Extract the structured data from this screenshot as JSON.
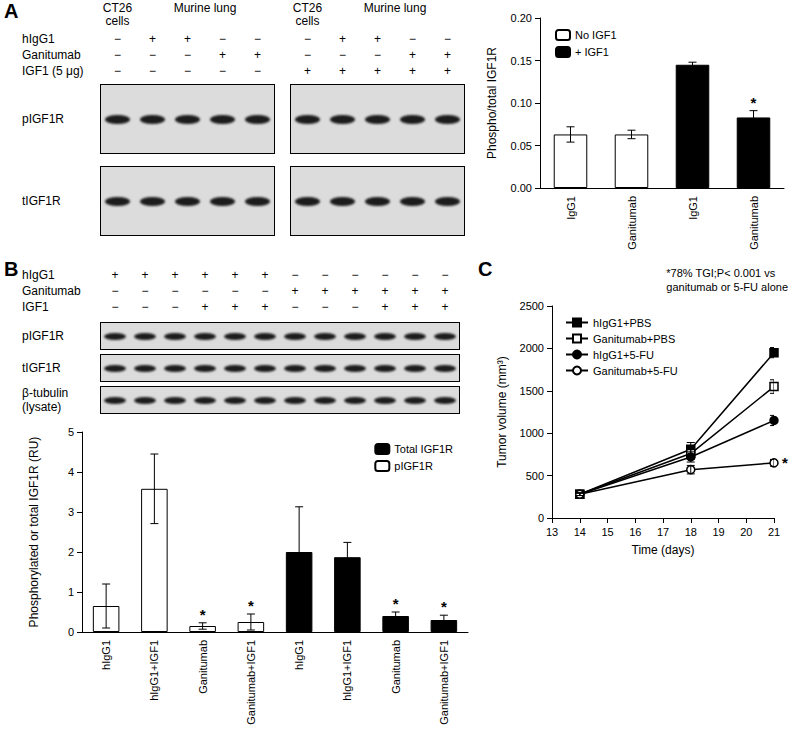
{
  "panel_labels": [
    "A",
    "B",
    "C"
  ],
  "blots": [
    {
      "row_labels": [
        "hIgG1",
        "Ganitumab",
        "IGF1 (5 μg)"
      ],
      "band_labels": [
        "pIGF1R",
        "tIGF1R"
      ],
      "boxes": [
        {
          "groups": [
            {
              "header": "CT26 cells",
              "treatments": [
                [
                  "−"
                ],
                [
                  "−"
                ],
                [
                  "−"
                ]
              ]
            },
            {
              "header": "Murine lung",
              "treatments": [
                [
                  "+",
                  "+",
                  "−",
                  "−"
                ],
                [
                  "−",
                  "−",
                  "+",
                  "+"
                ],
                [
                  "−",
                  "−",
                  "−",
                  "−"
                ]
              ]
            }
          ]
        },
        {
          "groups": [
            {
              "header": "CT26 cells",
              "treatments": [
                [
                  "−"
                ],
                [
                  "−"
                ],
                [
                  "+"
                ]
              ]
            },
            {
              "header": "Murine lung",
              "treatments": [
                [
                  "+",
                  "+",
                  "−",
                  "−"
                ],
                [
                  "−",
                  "−",
                  "+",
                  "+"
                ],
                [
                  "+",
                  "+",
                  "+",
                  "+"
                ]
              ]
            }
          ]
        }
      ]
    },
    {
      "row_labels": [
        "hIgG1",
        "Ganitumab",
        "IGF1"
      ],
      "band_labels": [
        "pIGF1R",
        "tIGF1R",
        "β-tubulin (lysate)"
      ],
      "boxes": [
        {
          "groups": [
            {
              "treatments": [
                [
                  "+",
                  "+",
                  "+",
                  "+",
                  "+",
                  "+",
                  "−",
                  "−",
                  "−",
                  "−",
                  "−",
                  "−"
                ],
                [
                  "−",
                  "−",
                  "−",
                  "−",
                  "−",
                  "−",
                  "+",
                  "+",
                  "+",
                  "+",
                  "+",
                  "+"
                ],
                [
                  "−",
                  "−",
                  "−",
                  "+",
                  "+",
                  "+",
                  "−",
                  "−",
                  "−",
                  "+",
                  "+",
                  "+"
                ]
              ]
            }
          ]
        }
      ]
    }
  ],
  "chart_data": [
    {
      "type": "bar",
      "categories": [
        "IgG1",
        "Ganitumab",
        "IgG1",
        "Ganitumab"
      ],
      "ylabel": "Phospho/total IGF1R",
      "ylim": [
        0,
        0.2
      ],
      "yticks": [
        {
          "value": 0,
          "label": "0.00"
        },
        {
          "value": 0.05,
          "label": "0.05"
        },
        {
          "value": 0.1,
          "label": "0.10"
        },
        {
          "value": 0.15,
          "label": "0.15"
        },
        {
          "value": 0.2,
          "label": "0.20"
        }
      ],
      "legend": "top-left",
      "series": [
        {
          "name": "No IGF1",
          "color": "#ffffff",
          "values": [
            0.063,
            0.063,
            null,
            null
          ],
          "errors": [
            0.009,
            0.005,
            null,
            null
          ]
        },
        {
          "name": "+ IGF1",
          "color": "#000000",
          "values": [
            null,
            null,
            0.145,
            0.083
          ],
          "errors": [
            null,
            null,
            0.003,
            0.008
          ]
        }
      ],
      "annotations": [
        {
          "text": "*",
          "series": "+ IGF1",
          "index": 3
        }
      ]
    },
    {
      "type": "bar",
      "categories": [
        "hIgG1",
        "hIgG1+IGF1",
        "Ganitumab",
        "Ganitumab+IGF1",
        "hIgG1",
        "hIgG1+IGF1",
        "Ganitumab",
        "Ganitumab+IGF1"
      ],
      "ylabel": "Phosphorylated or total IGF1R (RU)",
      "ylim": [
        0,
        5
      ],
      "yticks": [
        0,
        1,
        2,
        3,
        4,
        5
      ],
      "legend": "top-right",
      "series": [
        {
          "name": "Total IGF1R",
          "color": "#000000",
          "values": [
            null,
            null,
            null,
            null,
            2.0,
            1.87,
            0.4,
            0.3
          ],
          "errors": [
            null,
            null,
            null,
            null,
            1.13,
            0.37,
            0.1,
            0.12
          ]
        },
        {
          "name": "pIGF1R",
          "color": "#ffffff",
          "values": [
            0.65,
            3.58,
            0.15,
            0.25,
            null,
            null,
            null,
            null
          ],
          "errors": [
            0.55,
            0.87,
            0.08,
            0.2,
            null,
            null,
            null,
            null
          ]
        }
      ],
      "annotations": [
        {
          "text": "*",
          "series": "pIGF1R",
          "index": 2
        },
        {
          "text": "*",
          "series": "pIGF1R",
          "index": 3
        },
        {
          "text": "*",
          "series": "Total IGF1R",
          "index": 6
        },
        {
          "text": "*",
          "series": "Total IGF1R",
          "index": 7
        }
      ]
    },
    {
      "type": "line",
      "x": [
        14,
        18,
        21
      ],
      "xlabel": "Time (days)",
      "ylabel": "Tumor volume (mm³)",
      "xlim": [
        13,
        21
      ],
      "xticks": [
        13,
        14,
        15,
        16,
        17,
        18,
        19,
        20,
        21
      ],
      "ylim": [
        0,
        2500
      ],
      "yticks": [
        0,
        500,
        1000,
        1500,
        2000,
        2500
      ],
      "legend": "top-left",
      "series": [
        {
          "name": "hIgG1+PBS",
          "color": "#000000",
          "marker": "filled_square",
          "values": [
            280,
            810,
            1950
          ],
          "errors": [
            15,
            80,
            60
          ]
        },
        {
          "name": "Ganitumab+PBS",
          "color": "#000000",
          "marker": "open_square",
          "values": [
            280,
            760,
            1550
          ],
          "errors": [
            15,
            70,
            80
          ]
        },
        {
          "name": "hIgG1+5-FU",
          "color": "#000000",
          "marker": "filled_circle",
          "values": [
            280,
            720,
            1150
          ],
          "errors": [
            15,
            60,
            60
          ]
        },
        {
          "name": "Ganitumab+5-FU",
          "color": "#000000",
          "marker": "open_circle",
          "values": [
            280,
            570,
            650
          ],
          "errors": [
            15,
            50,
            40
          ]
        }
      ],
      "annotations": [
        {
          "text": "*",
          "series": "Ganitumab+5-FU",
          "x": 21
        }
      ],
      "note": [
        "*78% TGI;P< 0.001 vs",
        "ganitumab or 5-FU alone"
      ]
    }
  ]
}
